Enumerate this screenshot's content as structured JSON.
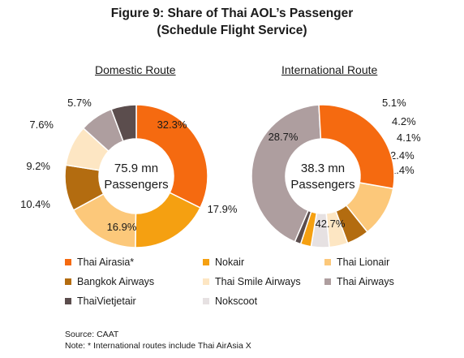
{
  "header": {
    "title_line1": "Figure 9: Share of Thai AOL’s Passenger",
    "title_line2": "(Schedule Flight Service)"
  },
  "airlines": [
    {
      "name": "Thai Airasia*",
      "color": "#F56A10"
    },
    {
      "name": "Nokair",
      "color": "#F5A011"
    },
    {
      "name": "Thai Lionair",
      "color": "#FCC87A"
    },
    {
      "name": "Bangkok Airways",
      "color": "#B36C10"
    },
    {
      "name": "Thai Smile Airways",
      "color": "#FDE6C3"
    },
    {
      "name": "Thai Airways",
      "color": "#AE9E9F"
    },
    {
      "name": "ThaiVietjetair",
      "color": "#5B4D4D"
    },
    {
      "name": "Nokscoot",
      "color": "#E6E1E2"
    }
  ],
  "chart_data": [
    {
      "type": "pie",
      "subtitle": "Domestic Route",
      "center_text": [
        "75.9 mn",
        "Passengers"
      ],
      "unit": "%",
      "slices": [
        {
          "label": "Thai Airasia*",
          "value": 32.3
        },
        {
          "label": "Nokair",
          "value": 17.9
        },
        {
          "label": "Thai Lionair",
          "value": 16.9
        },
        {
          "label": "Bangkok Airways",
          "value": 10.4
        },
        {
          "label": "Thai Smile Airways",
          "value": 9.2
        },
        {
          "label": "Thai Airways",
          "value": 7.6
        },
        {
          "label": "ThaiVietjetair",
          "value": 5.7
        }
      ]
    },
    {
      "type": "pie",
      "subtitle": "International Route",
      "center_text": [
        "38.3 mn",
        "Passengers"
      ],
      "unit": "%",
      "slices": [
        {
          "label": "Thai Lionair",
          "value": 11.5
        },
        {
          "label": "Bangkok Airways",
          "value": 5.1
        },
        {
          "label": "Thai Smile Airways",
          "value": 4.2
        },
        {
          "label": "Nokscoot",
          "value": 4.1
        },
        {
          "label": "Nokair",
          "value": 2.4
        },
        {
          "label": "ThaiVietjetair",
          "value": 1.4
        },
        {
          "label": "Thai Airways",
          "value": 42.7
        },
        {
          "label": "Thai Airasia*",
          "value": 28.7
        }
      ]
    }
  ],
  "footer": {
    "source": "Source: CAAT",
    "note": "Note: * International routes include Thai AirAsia X"
  }
}
